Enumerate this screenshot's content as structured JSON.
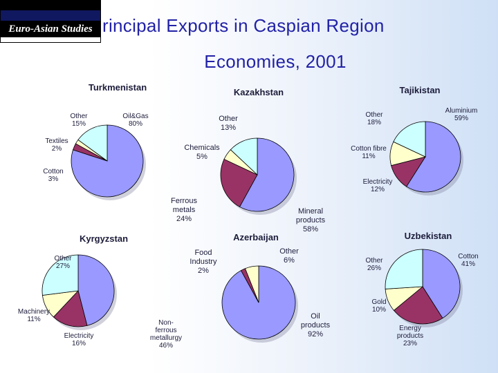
{
  "logo": {
    "text": "Euro-Asian Studies"
  },
  "title": {
    "line1": "rincipal Exports in Caspian Region",
    "line2": "Economies, 2001"
  },
  "colors": {
    "blue": "#9999ff",
    "maroon": "#993366",
    "cream": "#ffffcc",
    "cyan": "#ccffff",
    "title": "#2222a6"
  },
  "chart_data": [
    {
      "type": "pie",
      "title": "Turkmenistan",
      "slices": [
        {
          "label": "Oil&Gas",
          "value": 80,
          "pct": "80%",
          "color": "#9999ff"
        },
        {
          "label": "Cotton",
          "value": 3,
          "pct": "3%",
          "color": "#993366"
        },
        {
          "label": "Textiles",
          "value": 2,
          "pct": "2%",
          "color": "#ffffcc"
        },
        {
          "label": "Other",
          "value": 15,
          "pct": "15%",
          "color": "#ccffff"
        }
      ]
    },
    {
      "type": "pie",
      "title": "Kazakhstan",
      "slices": [
        {
          "label": "Mineral products",
          "value": 58,
          "pct": "58%",
          "color": "#9999ff"
        },
        {
          "label": "Ferrous metals",
          "value": 24,
          "pct": "24%",
          "color": "#993366"
        },
        {
          "label": "Chemicals",
          "value": 5,
          "pct": "5%",
          "color": "#ffffcc"
        },
        {
          "label": "Other",
          "value": 13,
          "pct": "13%",
          "color": "#ccffff"
        }
      ]
    },
    {
      "type": "pie",
      "title": "Tajikistan",
      "slices": [
        {
          "label": "Aluminium",
          "value": 59,
          "pct": "59%",
          "color": "#9999ff"
        },
        {
          "label": "Electricity",
          "value": 12,
          "pct": "12%",
          "color": "#993366"
        },
        {
          "label": "Cotton fibre",
          "value": 11,
          "pct": "11%",
          "color": "#ffffcc"
        },
        {
          "label": "Other",
          "value": 18,
          "pct": "18%",
          "color": "#ccffff"
        }
      ]
    },
    {
      "type": "pie",
      "title": "Kyrgyzstan",
      "slices": [
        {
          "label": "Non-ferrous metallurgy",
          "value": 46,
          "pct": "46%",
          "color": "#9999ff"
        },
        {
          "label": "Electricity",
          "value": 16,
          "pct": "16%",
          "color": "#993366"
        },
        {
          "label": "Machinery",
          "value": 11,
          "pct": "11%",
          "color": "#ffffcc"
        },
        {
          "label": "Other",
          "value": 27,
          "pct": "27%",
          "color": "#ccffff"
        }
      ]
    },
    {
      "type": "pie",
      "title": "Azerbaijan",
      "slices": [
        {
          "label": "Oil products",
          "value": 92,
          "pct": "92%",
          "color": "#9999ff"
        },
        {
          "label": "Food Industry",
          "value": 2,
          "pct": "2%",
          "color": "#993366"
        },
        {
          "label": "Other",
          "value": 6,
          "pct": "6%",
          "color": "#ffffcc"
        }
      ]
    },
    {
      "type": "pie",
      "title": "Uzbekistan",
      "slices": [
        {
          "label": "Cotton",
          "value": 41,
          "pct": "41%",
          "color": "#9999ff"
        },
        {
          "label": "Energy products",
          "value": 23,
          "pct": "23%",
          "color": "#993366"
        },
        {
          "label": "Gold",
          "value": 10,
          "pct": "10%",
          "color": "#ffffcc"
        },
        {
          "label": "Other",
          "value": 26,
          "pct": "26%",
          "color": "#ccffff"
        }
      ]
    }
  ]
}
